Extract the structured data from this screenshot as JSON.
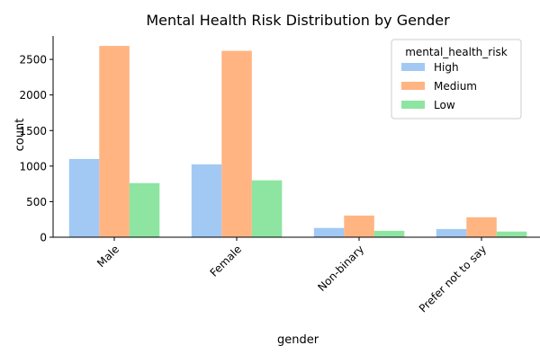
{
  "chart_data": {
    "type": "bar",
    "title": "Mental Health Risk Distribution by Gender",
    "xlabel": "gender",
    "ylabel": "count",
    "categories": [
      "Male",
      "Female",
      "Non-binary",
      "Prefer not to say"
    ],
    "yticks": [
      0,
      500,
      1000,
      1500,
      2000,
      2500
    ],
    "ylim": [
      0,
      2830
    ],
    "series": [
      {
        "name": "High",
        "color": "#a1c9f4",
        "values": [
          1100,
          1025,
          130,
          115
        ]
      },
      {
        "name": "Medium",
        "color": "#ffb482",
        "values": [
          2690,
          2620,
          305,
          280
        ]
      },
      {
        "name": "Low",
        "color": "#8de5a1",
        "values": [
          760,
          800,
          90,
          80
        ]
      }
    ],
    "legend": {
      "title": "mental_health_risk",
      "position": "top-right"
    },
    "grid": false
  }
}
